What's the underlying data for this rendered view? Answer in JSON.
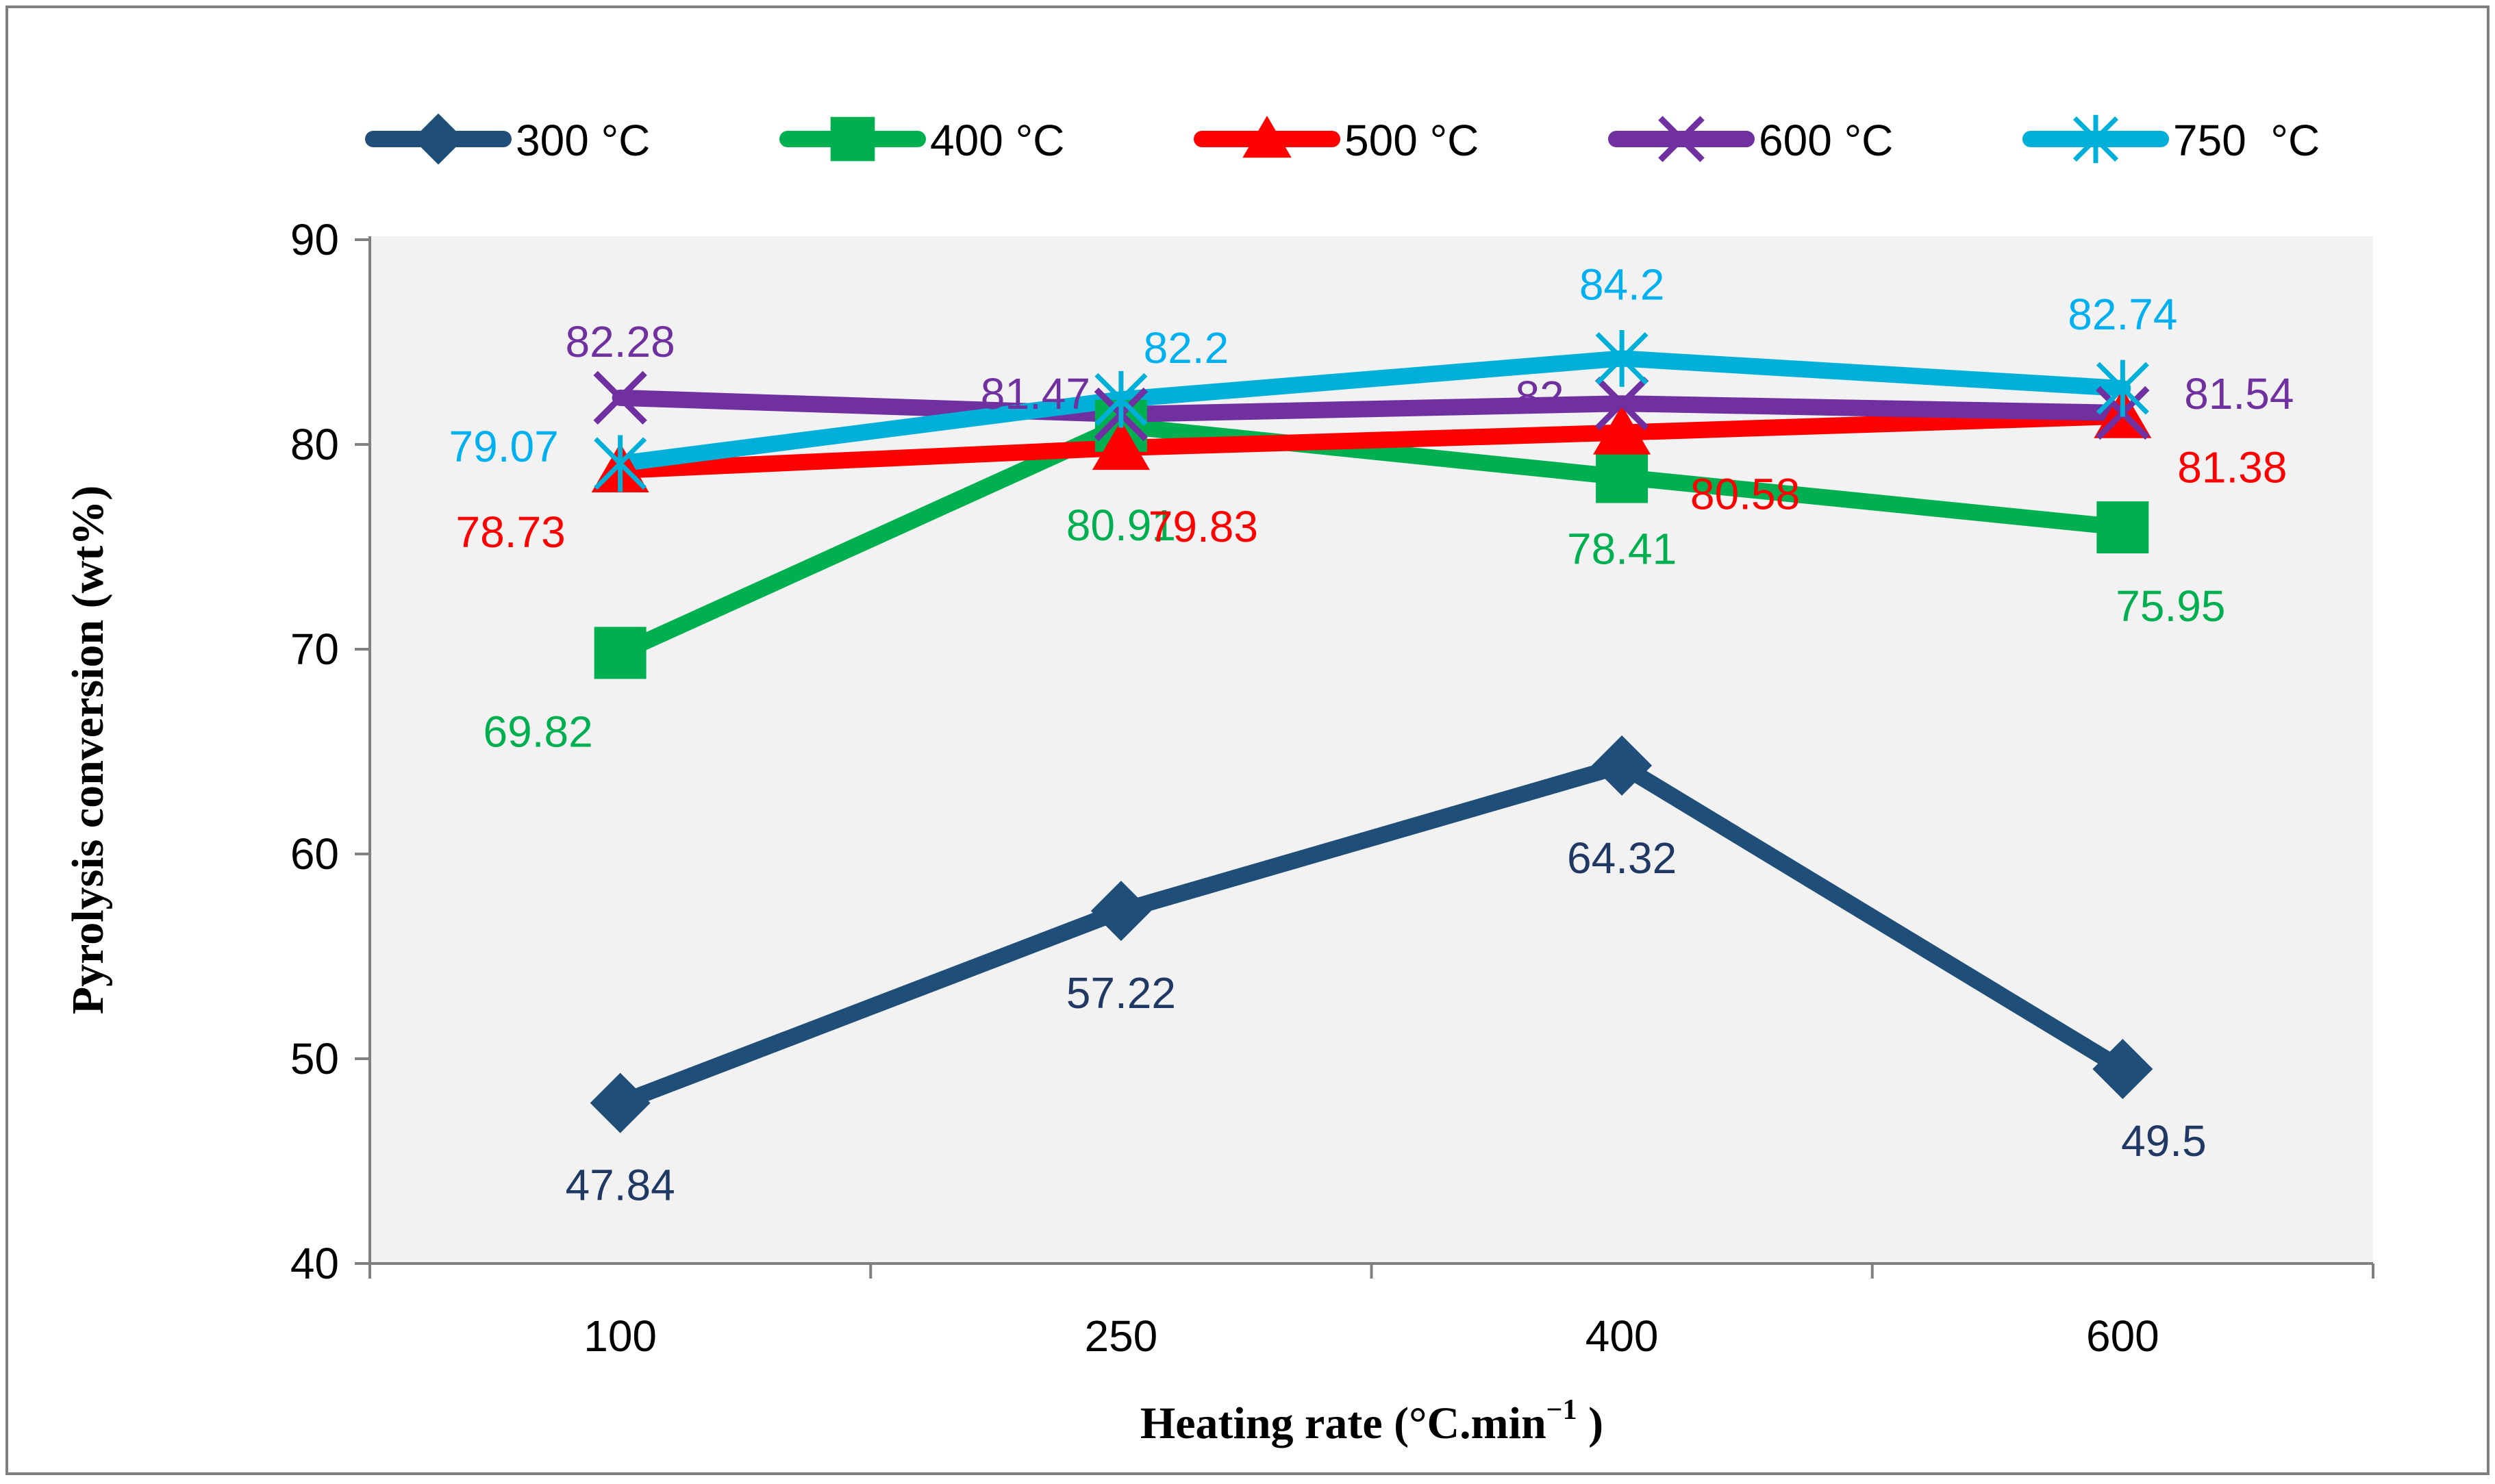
{
  "chart_data": {
    "type": "line",
    "title": "",
    "xlabel": "Heating rate (°C.min",
    "xlabel_sup": "−1",
    "xlabel_close": " )",
    "ylabel": "Pyrolysis conversion (wt%)",
    "categories": [
      "100",
      "250",
      "400",
      "600"
    ],
    "ylim": [
      40,
      90
    ],
    "yticks": [
      "40",
      "50",
      "60",
      "70",
      "80",
      "90"
    ],
    "grid": false,
    "legend_position": "top",
    "series": [
      {
        "name": "300 °C",
        "color": "#1f4e79",
        "label_color": "#1f3864",
        "marker": "diamond",
        "values": [
          47.84,
          57.22,
          64.32,
          49.5
        ],
        "labels": [
          "47.84",
          "57.22",
          "64.32",
          "49.5"
        ]
      },
      {
        "name": "400 °C",
        "color": "#00b050",
        "label_color": "#00b050",
        "marker": "square",
        "values": [
          69.82,
          80.91,
          78.41,
          75.95
        ],
        "labels": [
          "69.82",
          "80.91",
          "78.41",
          "75.95"
        ]
      },
      {
        "name": "500 °C",
        "color": "#ff0000",
        "label_color": "#ff0000",
        "marker": "triangle",
        "values": [
          78.73,
          79.83,
          80.58,
          81.38
        ],
        "labels": [
          "78.73",
          "79.83",
          "80.58",
          "81.38"
        ]
      },
      {
        "name": "600 °C",
        "color": "#7030a0",
        "label_color": "#7030a0",
        "marker": "x",
        "values": [
          82.28,
          81.47,
          82,
          81.54
        ],
        "labels": [
          "82.28",
          "81.47",
          "82",
          "81.54"
        ]
      },
      {
        "name": "750  °C",
        "color": "#00b0d8",
        "label_color": "#00b0f0",
        "marker": "star",
        "values": [
          79.07,
          82.2,
          84.2,
          82.74
        ],
        "labels": [
          "79.07",
          "82.2",
          "84.2",
          "82.74"
        ]
      }
    ]
  }
}
